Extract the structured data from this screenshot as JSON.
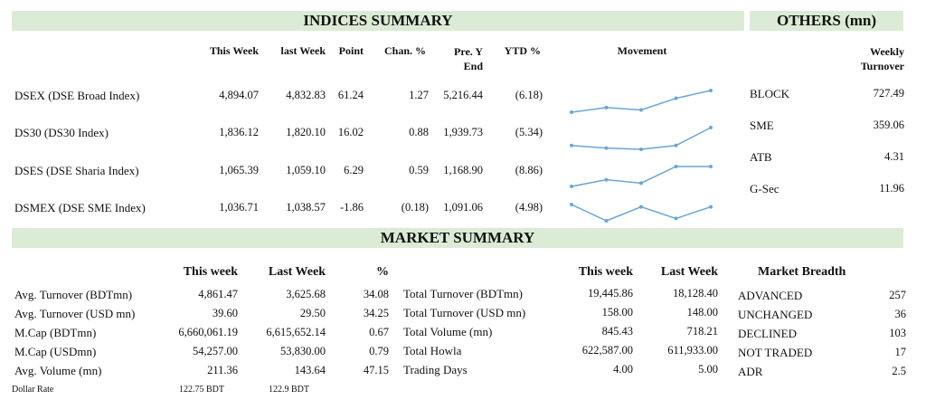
{
  "indices": {
    "title": "INDICES SUMMARY",
    "headers": {
      "this_week": "This Week",
      "last_week": "last Week",
      "point": "Point",
      "chan": "Chan. %",
      "prey": "Pre. Y\nEnd",
      "ytd": "YTD %",
      "movement": "Movement"
    },
    "rows": [
      {
        "name": "DSEX (DSE Broad Index)",
        "this_week": "4,894.07",
        "last_week": "4,832.83",
        "point": "61.24",
        "chan": "1.27",
        "prey": "5,216.44",
        "ytd": "(6.18)",
        "movement": [
          4800,
          4820,
          4810,
          4860,
          4894
        ]
      },
      {
        "name": "DS30 (DS30 Index)",
        "this_week": "1,836.12",
        "last_week": "1,820.10",
        "point": "16.02",
        "chan": "0.88",
        "prey": "1,939.73",
        "ytd": "(5.34)",
        "movement": [
          1822,
          1820,
          1819,
          1822,
          1836
        ]
      },
      {
        "name": "DSES (DSE Sharia Index)",
        "this_week": "1,065.39",
        "last_week": "1,059.10",
        "point": "6.29",
        "chan": "0.59",
        "prey": "1,168.90",
        "ytd": "(8.86)",
        "movement": [
          1059,
          1061,
          1060,
          1065,
          1065
        ]
      },
      {
        "name": "DSMEX (DSE SME Index)",
        "this_week": "1,036.71",
        "last_week": "1,038.57",
        "point": "-1.86",
        "chan": "(0.18)",
        "prey": "1,091.06",
        "ytd": "(4.98)",
        "movement": [
          1037,
          1030,
          1036,
          1031,
          1036
        ]
      }
    ]
  },
  "others": {
    "title": "OTHERS (mn)",
    "header": "Weekly\nTurnover",
    "rows": [
      {
        "name": "BLOCK",
        "value": "727.49"
      },
      {
        "name": "SME",
        "value": "359.06"
      },
      {
        "name": "ATB",
        "value": "4.31"
      },
      {
        "name": "G-Sec",
        "value": "11.96"
      }
    ]
  },
  "market": {
    "title": "MARKET SUMMARY",
    "left": {
      "headers": {
        "this_week": "This week",
        "last_week": "Last Week",
        "pct": "%"
      },
      "rows": [
        {
          "name": "Avg. Turnover (BDTmn)",
          "this_week": "4,861.47",
          "last_week": "3,625.68",
          "pct": "34.08"
        },
        {
          "name": "Avg. Turnover (USD mn)",
          "this_week": "39.60",
          "last_week": "29.50",
          "pct": "34.25"
        },
        {
          "name": "M.Cap (BDTmn)",
          "this_week": "6,660,061.19",
          "last_week": "6,615,652.14",
          "pct": "0.67"
        },
        {
          "name": "M.Cap (USDmn)",
          "this_week": "54,257.00",
          "last_week": "53,830.00",
          "pct": "0.79"
        },
        {
          "name": "Avg. Volume (mn)",
          "this_week": "211.36",
          "last_week": "143.64",
          "pct": "47.15"
        }
      ],
      "dollar_rate": {
        "label": "Dollar Rate",
        "this_week": "122.75 BDT",
        "last_week": "122.9 BDT"
      }
    },
    "middle": {
      "headers": {
        "this_week": "This week",
        "last_week": "Last Week"
      },
      "rows": [
        {
          "name": "Total Turnover (BDTmn)",
          "this_week": "19,445.86",
          "last_week": "18,128.40"
        },
        {
          "name": "Total Turnover (USD mn)",
          "this_week": "158.00",
          "last_week": "148.00"
        },
        {
          "name": "Total Volume (mn)",
          "this_week": "845.43",
          "last_week": "718.21"
        },
        {
          "name": "Total Howla",
          "this_week": "622,587.00",
          "last_week": "611,933.00"
        },
        {
          "name": "Trading Days",
          "this_week": "4.00",
          "last_week": "5.00"
        }
      ]
    },
    "breadth": {
      "title": "Market Breadth",
      "rows": [
        {
          "name": "ADVANCED",
          "value": "257"
        },
        {
          "name": "UNCHANGED",
          "value": "36"
        },
        {
          "name": "DECLINED",
          "value": "103"
        },
        {
          "name": "NOT TRADED",
          "value": "17"
        },
        {
          "name": "ADR",
          "value": "2.5"
        }
      ]
    }
  },
  "colors": {
    "banner": "#dcebd5",
    "spark": "#6aa5d6"
  }
}
